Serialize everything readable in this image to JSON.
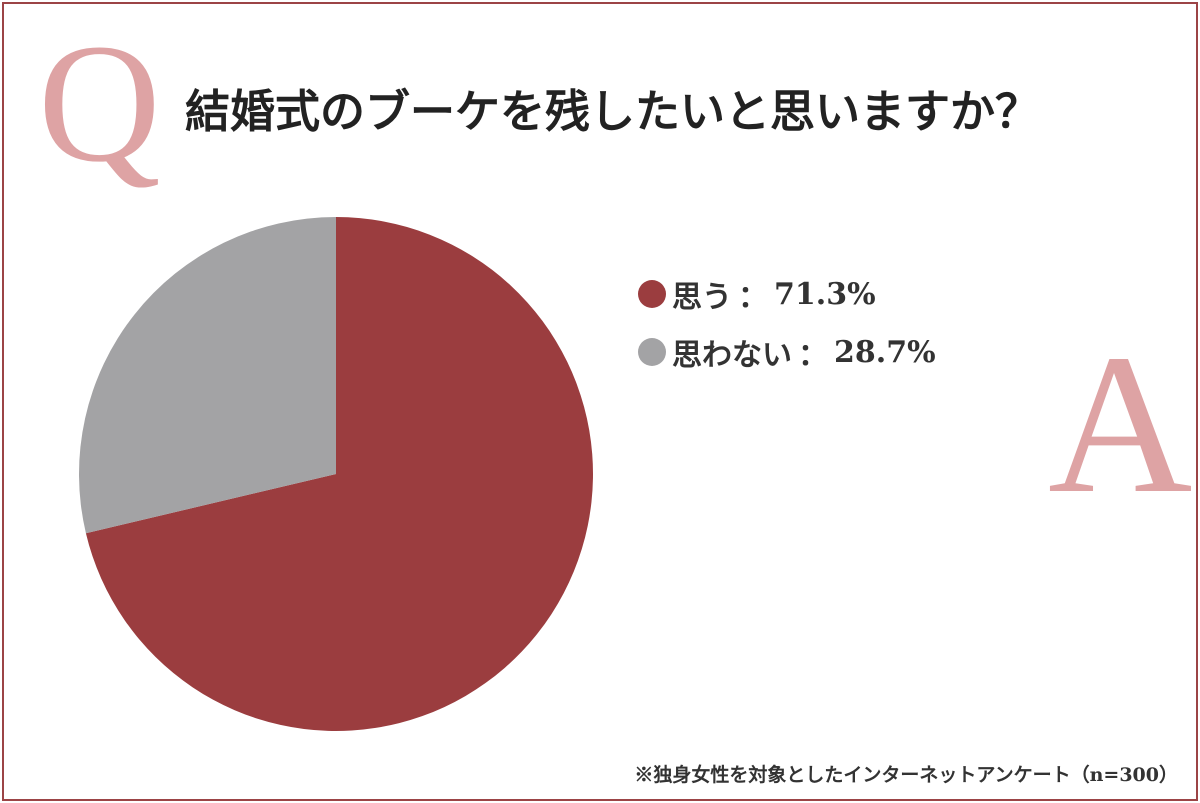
{
  "question_marker": "Q",
  "answer_marker": "A",
  "title": "結婚式のブーケを残したいと思いますか？",
  "footnote": "※独身女性を対象としたインターネットアンケート（n=300）",
  "legend_separator": "：",
  "colors": {
    "yes": "#9b3d3f",
    "no": "#a3a3a5",
    "marker": "#dea3a4",
    "frame": "#9c4446"
  },
  "chart_data": {
    "type": "pie",
    "title": "結婚式のブーケを残したいと思いますか？",
    "categories": [
      "思う",
      "思わない"
    ],
    "values": [
      71.3,
      28.7
    ],
    "value_labels": [
      "71.3%",
      "28.7%"
    ],
    "unit": "%",
    "start_angle": "12 o'clock",
    "direction": "clockwise",
    "legend": "right"
  }
}
